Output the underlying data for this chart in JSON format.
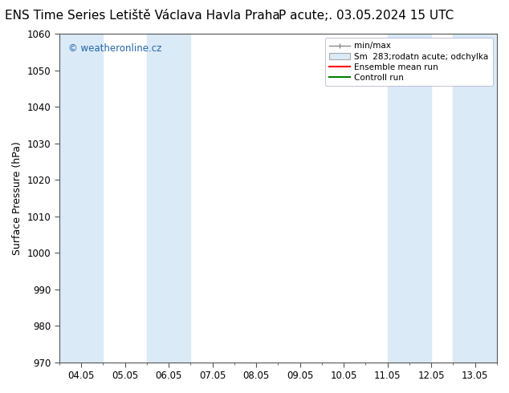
{
  "title": "ENS Time Series Letiště Václava Havla Praha",
  "title2": "P acute;. 03.05.2024 15 UTC",
  "ylabel": "Surface Pressure (hPa)",
  "ylim": [
    970,
    1060
  ],
  "yticks": [
    970,
    980,
    990,
    1000,
    1010,
    1020,
    1030,
    1040,
    1050,
    1060
  ],
  "xtick_labels": [
    "04.05",
    "05.05",
    "06.05",
    "07.05",
    "08.05",
    "09.05",
    "10.05",
    "11.05",
    "12.05",
    "13.05"
  ],
  "xtick_positions": [
    0,
    1,
    2,
    3,
    4,
    5,
    6,
    7,
    8,
    9
  ],
  "xlim": [
    -0.5,
    9.5
  ],
  "legend_labels": [
    "min/max",
    "Sm  283;rodatn acute; odchylka",
    "Ensemble mean run",
    "Controll run"
  ],
  "shaded_bands": [
    {
      "x_start": -0.5,
      "x_end": 0.5
    },
    {
      "x_start": 1.5,
      "x_end": 2.5
    },
    {
      "x_start": 7.0,
      "x_end": 8.0
    },
    {
      "x_start": 8.5,
      "x_end": 9.5
    }
  ],
  "band_color": "#daeaf7",
  "plot_bg": "#ffffff",
  "watermark": "© weatheronline.cz",
  "watermark_color": "#2266aa",
  "title_fontsize": 11,
  "ylabel_fontsize": 9,
  "tick_fontsize": 8.5,
  "spine_color": "#555555"
}
